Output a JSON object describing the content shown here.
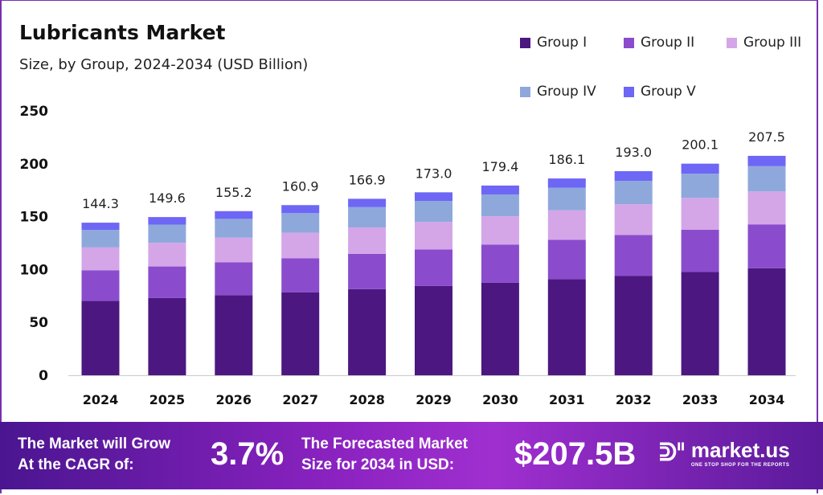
{
  "title": "Lubricants Market",
  "subtitle": "Size, by Group, 2024-2034 (USD Billion)",
  "chart_data": {
    "type": "bar",
    "stacked": true,
    "categories": [
      "2024",
      "2025",
      "2026",
      "2027",
      "2028",
      "2029",
      "2030",
      "2031",
      "2032",
      "2033",
      "2034"
    ],
    "series": [
      {
        "name": "Group I",
        "color": "#4c1780",
        "values": [
          70.4,
          73.0,
          75.8,
          78.5,
          81.4,
          84.4,
          87.6,
          90.9,
          94.1,
          97.7,
          101.2
        ]
      },
      {
        "name": "Group II",
        "color": "#8a4ccc",
        "values": [
          28.9,
          29.9,
          31.0,
          32.2,
          33.4,
          34.6,
          35.9,
          37.2,
          38.6,
          40.0,
          41.5
        ]
      },
      {
        "name": "Group III",
        "color": "#d4a6e8",
        "values": [
          21.6,
          22.4,
          23.3,
          24.1,
          25.0,
          26.0,
          26.9,
          27.9,
          29.0,
          30.0,
          31.1
        ]
      },
      {
        "name": "Group IV",
        "color": "#8fa8dc",
        "values": [
          16.6,
          17.2,
          17.8,
          18.5,
          19.2,
          19.9,
          20.6,
          21.4,
          22.2,
          23.0,
          23.9
        ]
      },
      {
        "name": "Group V",
        "color": "#6e66f5",
        "values": [
          6.8,
          7.1,
          7.3,
          7.6,
          7.9,
          8.1,
          8.4,
          8.7,
          9.1,
          9.4,
          9.8
        ]
      }
    ],
    "totals": [
      "144.3",
      "149.6",
      "155.2",
      "160.9",
      "166.9",
      "173.0",
      "179.4",
      "186.1",
      "193.0",
      "200.1",
      "207.5"
    ],
    "yticks": [
      "0",
      "50",
      "100",
      "150",
      "200",
      "250"
    ],
    "ylim": [
      0,
      250
    ],
    "grid": false,
    "legend_position": "top-right"
  },
  "footer": {
    "cagr_label_line1": "The Market will Grow",
    "cagr_label_line2": "At the CAGR of:",
    "cagr_value": "3.7%",
    "forecast_label_line1": "The Forecasted Market",
    "forecast_label_line2": "Size for 2034 in USD:",
    "forecast_value": "$207.5B",
    "brand_name": "market.us",
    "brand_tagline": "ONE STOP SHOP FOR THE REPORTS"
  }
}
